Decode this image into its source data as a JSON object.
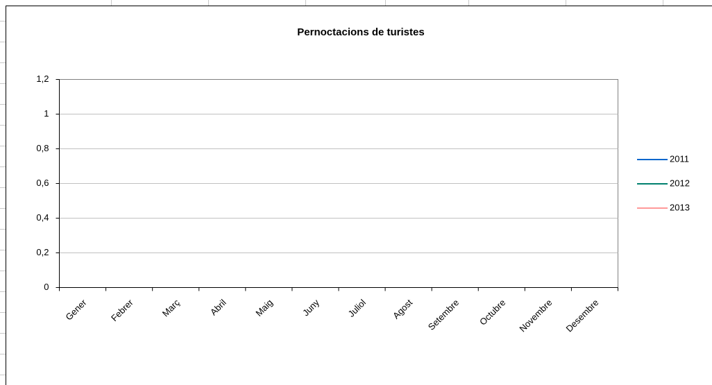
{
  "chart_data": {
    "type": "line",
    "title": "Pernoctacions de turistes",
    "categories": [
      "Gener",
      "Febrer",
      "Març",
      "Abril",
      "Maig",
      "Juny",
      "Juliol",
      "Agost",
      "Setembre",
      "Octubre",
      "Novembre",
      "Desembre"
    ],
    "series": [
      {
        "name": "2011",
        "color": "#0066cc",
        "values": [
          null,
          null,
          null,
          null,
          null,
          null,
          null,
          null,
          null,
          null,
          null,
          null
        ]
      },
      {
        "name": "2012",
        "color": "#00806e",
        "values": [
          null,
          null,
          null,
          null,
          null,
          null,
          null,
          null,
          null,
          null,
          null,
          null
        ]
      },
      {
        "name": "2013",
        "color": "#ff9999",
        "values": [
          null,
          null,
          null,
          null,
          null,
          null,
          null,
          null,
          null,
          null,
          null,
          null
        ]
      }
    ],
    "ylim": [
      0,
      1.2
    ],
    "yticks": [
      0,
      {
        "value": 0.2,
        "label": "0,2"
      },
      {
        "value": 0.4,
        "label": "0,4"
      },
      {
        "value": 0.6,
        "label": "0,6"
      },
      {
        "value": 0.8,
        "label": "0,8"
      },
      1,
      {
        "value": 1.2,
        "label": "1,2"
      }
    ],
    "grid": true,
    "legend": "right"
  }
}
